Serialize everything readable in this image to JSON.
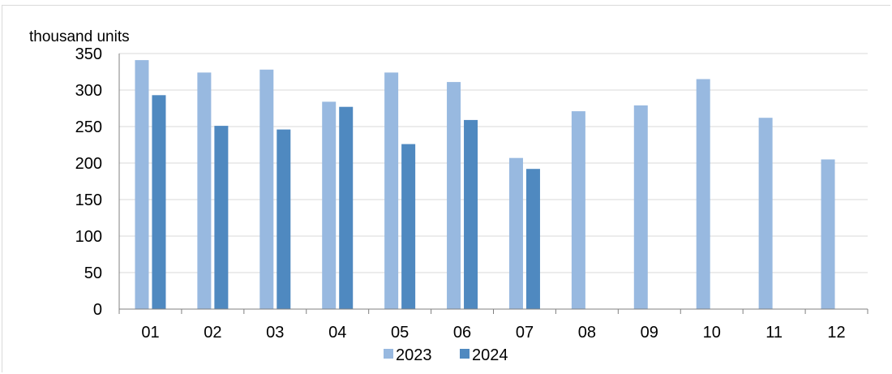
{
  "chart_data": {
    "type": "bar",
    "unit_label": "thousand units",
    "categories": [
      "01",
      "02",
      "03",
      "04",
      "05",
      "06",
      "07",
      "08",
      "09",
      "10",
      "11",
      "12"
    ],
    "series": [
      {
        "name": "2023",
        "color": "#98b9e0",
        "values": [
          341,
          324,
          328,
          284,
          324,
          311,
          207,
          271,
          279,
          315,
          262,
          205
        ]
      },
      {
        "name": "2024",
        "color": "#4f89c0",
        "values": [
          293,
          251,
          246,
          277,
          226,
          259,
          192,
          null,
          null,
          null,
          null,
          null
        ]
      }
    ],
    "yticks": [
      "0",
      "50",
      "100",
      "150",
      "200",
      "250",
      "300",
      "350"
    ],
    "ylim": [
      0,
      350
    ],
    "grid": true,
    "legend": "bottom-center",
    "colors": {
      "gridline": "#d9d9d9",
      "axis": "#808080"
    }
  }
}
